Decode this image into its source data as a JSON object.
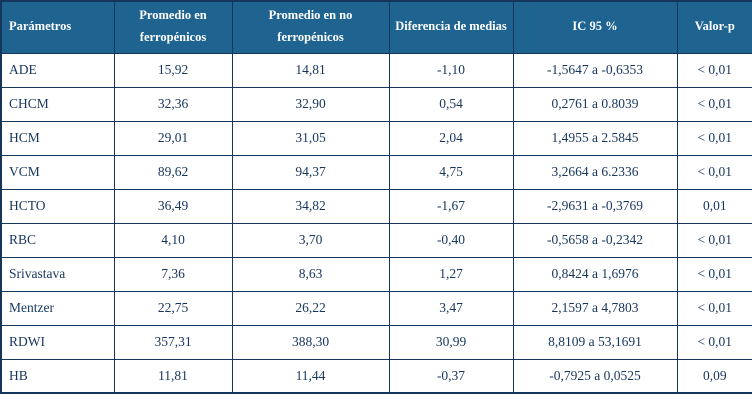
{
  "table": {
    "columns": [
      "Parámetros",
      "Promedio en ferropénicos",
      "Promedio en no ferropénicos",
      "Diferencia de medias",
      "IC 95 %",
      "Valor-p"
    ],
    "rows": [
      [
        "ADE",
        "15,92",
        "14,81",
        "-1,10",
        "-1,5647 a -0,6353",
        "< 0,01"
      ],
      [
        "CHCM",
        "32,36",
        "32,90",
        "0,54",
        "0,2761 a 0.8039",
        "< 0,01"
      ],
      [
        "HCM",
        "29,01",
        "31,05",
        "2,04",
        "1,4955 a 2.5845",
        "< 0,01"
      ],
      [
        "VCM",
        "89,62",
        "94,37",
        "4,75",
        "3,2664 a 6.2336",
        "< 0,01"
      ],
      [
        "HCTO",
        "36,49",
        "34,82",
        "-1,67",
        "-2,9631 a -0,3769",
        "0,01"
      ],
      [
        "RBC",
        "4,10",
        "3,70",
        "-0,40",
        "-0,5658 a -0,2342",
        "< 0,01"
      ],
      [
        "Srivastava",
        "7,36",
        "8,63",
        "1,27",
        "0,8424 a 1,6976",
        "< 0,01"
      ],
      [
        "Mentzer",
        "22,75",
        "26,22",
        "3,47",
        "2,1597 a 4,7803",
        "< 0,01"
      ],
      [
        "RDWI",
        "357,31",
        "388,30",
        "30,99",
        "8,8109 a 53,1691",
        "< 0,01"
      ],
      [
        "HB",
        "11,81",
        "11,44",
        "-0,37",
        "-0,7925 a 0,0525",
        "0,09"
      ]
    ]
  },
  "colors": {
    "header_bg": "#1f6391",
    "header_text": "#ffffff",
    "body_text": "#17365d",
    "border": "#15365b"
  }
}
